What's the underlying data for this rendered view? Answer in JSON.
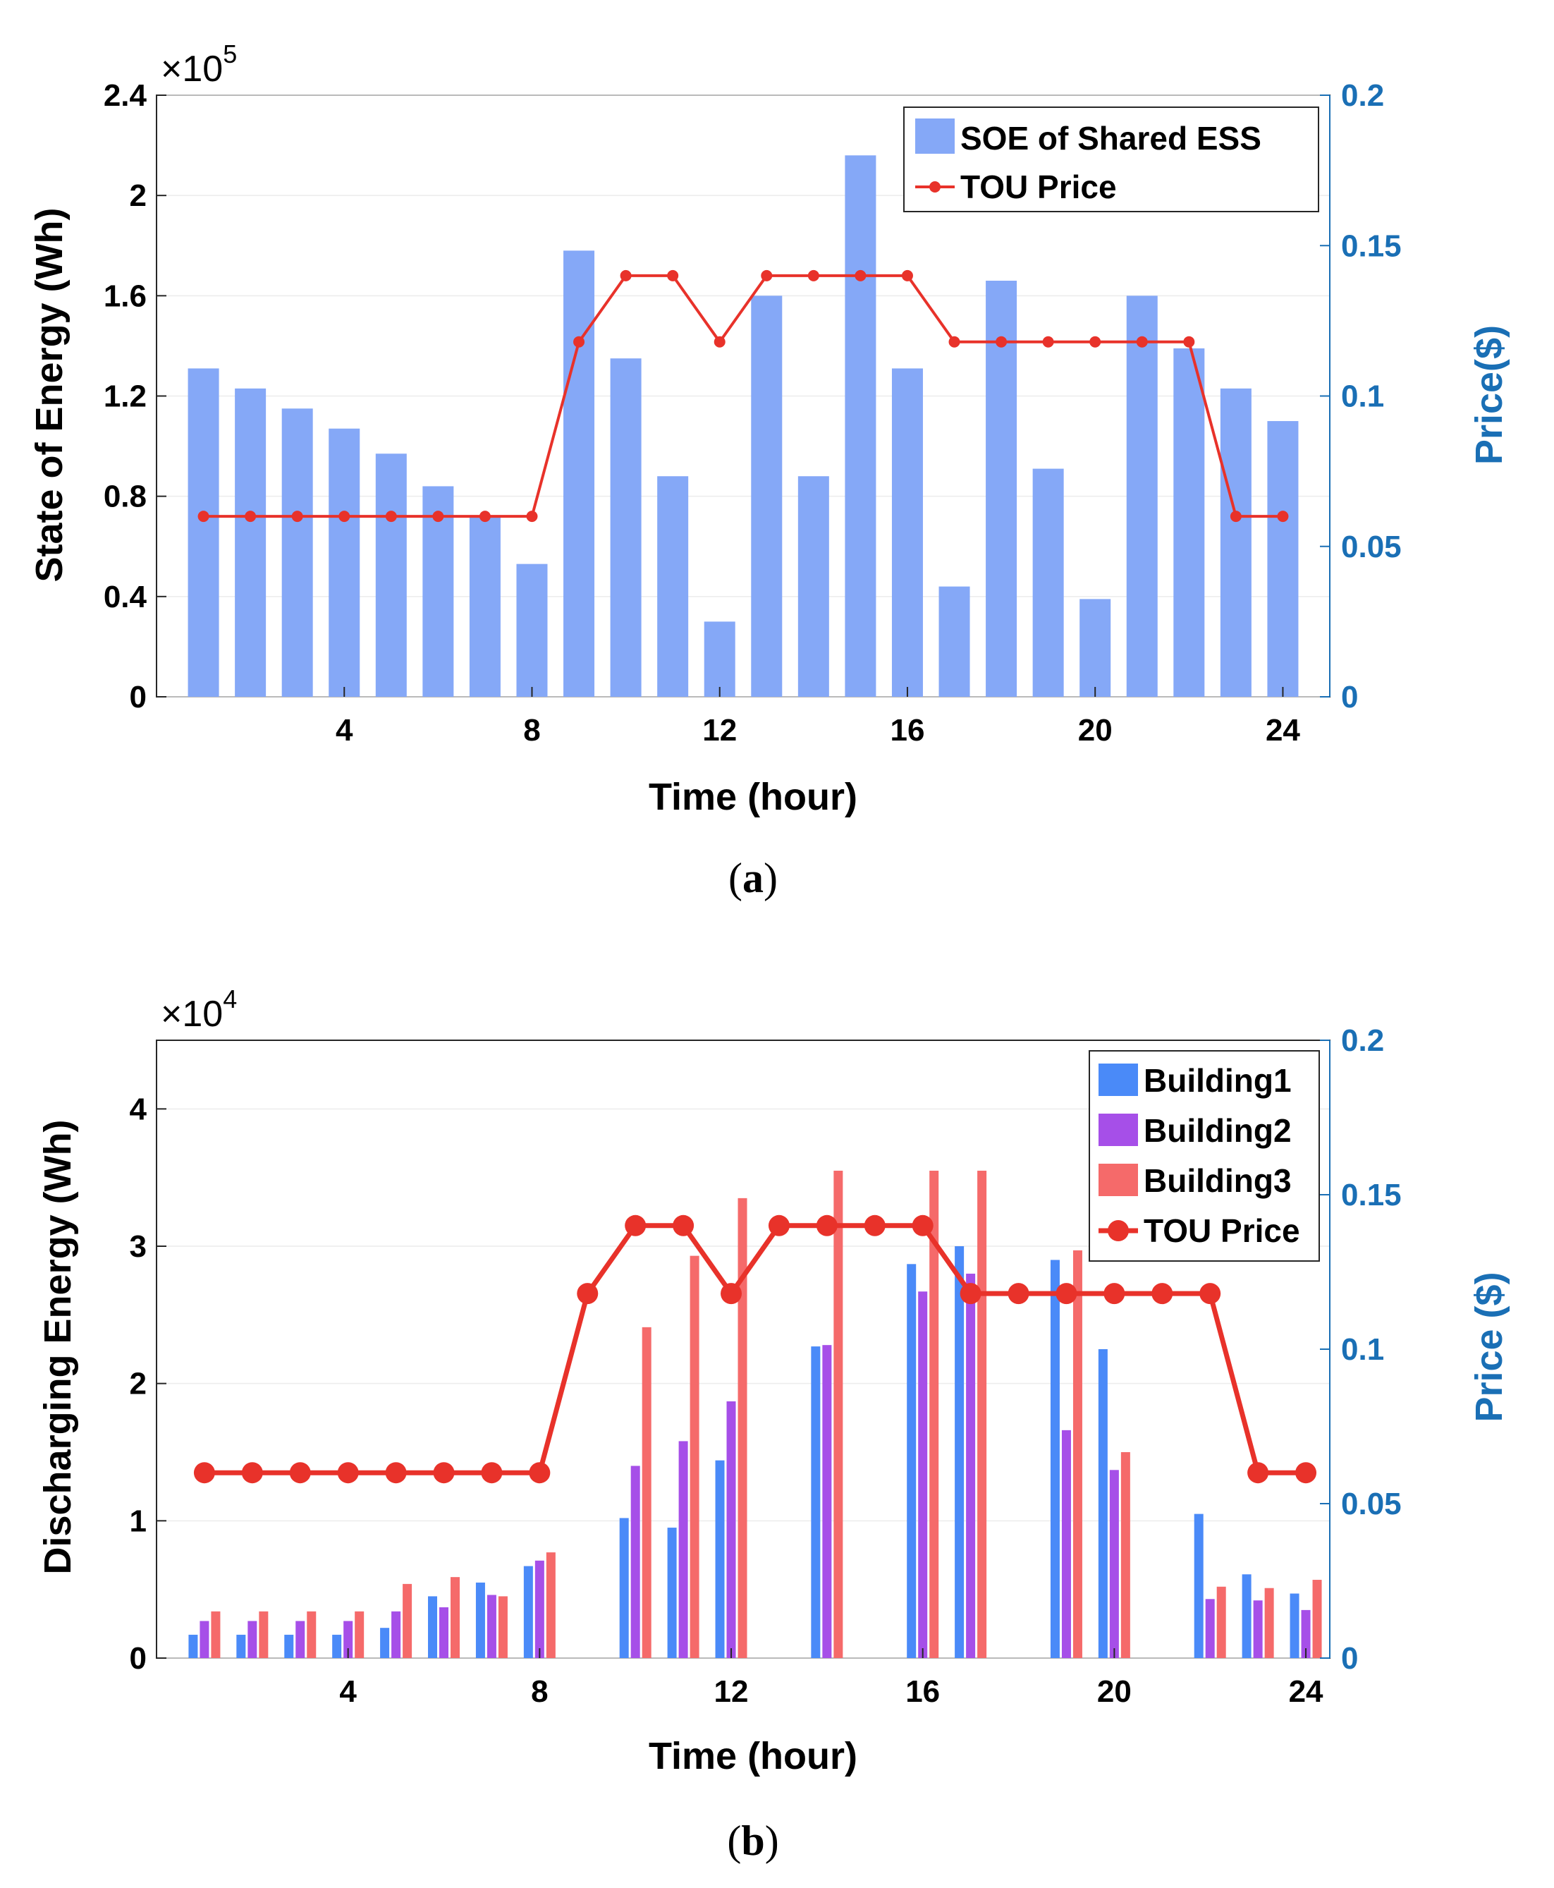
{
  "colors": {
    "soe_bar": "#85a8f7",
    "building1": "#4a8af8",
    "building2": "#a64fe8",
    "building3": "#f56a6a",
    "tou_line": "#e8322a",
    "right_axis": "#1a6fb5"
  },
  "chart_data": [
    {
      "type": "bar",
      "caption_open": "(",
      "caption_letter": "a",
      "caption_close": ")",
      "xlabel": "Time (hour)",
      "ylabel": "State of Energy (Wh)",
      "ylabel_right": "Price($)",
      "multiplier_base": "×10",
      "multiplier_exp": "5",
      "xlim": [
        0,
        25
      ],
      "ylim": [
        0,
        2.4
      ],
      "ylim_right": [
        0,
        0.2
      ],
      "x_ticks": [
        4,
        8,
        12,
        16,
        20,
        24
      ],
      "y_ticks": [
        "0",
        "0.4",
        "0.8",
        "1.2",
        "1.6",
        "2",
        "2.4"
      ],
      "y_tick_values": [
        0,
        0.4,
        0.8,
        1.2,
        1.6,
        2.0,
        2.4
      ],
      "y_right_ticks": [
        "0",
        "0.05",
        "0.1",
        "0.15",
        "0.2"
      ],
      "y_right_tick_values": [
        0,
        0.05,
        0.1,
        0.15,
        0.2
      ],
      "x": [
        1,
        2,
        3,
        4,
        5,
        6,
        7,
        8,
        9,
        10,
        11,
        12,
        13,
        14,
        15,
        16,
        17,
        18,
        19,
        20,
        21,
        22,
        23,
        24
      ],
      "series": [
        {
          "name": "SOE of Shared ESS",
          "kind": "bar",
          "values": [
            1.31,
            1.23,
            1.15,
            1.07,
            0.97,
            0.84,
            0.72,
            0.53,
            1.78,
            1.35,
            0.88,
            0.3,
            1.6,
            0.88,
            2.16,
            1.31,
            0.44,
            1.66,
            0.91,
            0.39,
            1.6,
            1.39,
            1.23,
            1.1
          ]
        },
        {
          "name": "TOU Price",
          "kind": "line",
          "axis": "right",
          "values": [
            0.06,
            0.06,
            0.06,
            0.06,
            0.06,
            0.06,
            0.06,
            0.06,
            0.118,
            0.14,
            0.14,
            0.118,
            0.14,
            0.14,
            0.14,
            0.14,
            0.118,
            0.118,
            0.118,
            0.118,
            0.118,
            0.118,
            0.06,
            0.06
          ]
        }
      ]
    },
    {
      "type": "bar",
      "caption_open": "(",
      "caption_letter": "b",
      "caption_close": ")",
      "xlabel": "Time (hour)",
      "ylabel": "Discharging Energy (Wh)",
      "ylabel_right": "Price ($)",
      "multiplier_base": "×10",
      "multiplier_exp": "4",
      "xlim": [
        0,
        24.5
      ],
      "ylim": [
        0,
        4.5
      ],
      "ylim_right": [
        0,
        0.2
      ],
      "x_ticks": [
        4,
        8,
        12,
        16,
        20,
        24
      ],
      "y_ticks": [
        "0",
        "1",
        "2",
        "3",
        "4"
      ],
      "y_tick_values": [
        0,
        1,
        2,
        3,
        4
      ],
      "y_right_ticks": [
        "0",
        "0.05",
        "0.1",
        "0.15",
        "0.2"
      ],
      "y_right_tick_values": [
        0,
        0.05,
        0.1,
        0.15,
        0.2
      ],
      "x": [
        1,
        2,
        3,
        4,
        5,
        6,
        7,
        8,
        9,
        10,
        11,
        12,
        13,
        14,
        15,
        16,
        17,
        18,
        19,
        20,
        21,
        22,
        23,
        24
      ],
      "series": [
        {
          "name": "Building1",
          "kind": "bar",
          "values": [
            0.17,
            0.17,
            0.17,
            0.17,
            0.22,
            0.45,
            0.55,
            0.67,
            0,
            1.02,
            0.95,
            1.44,
            0,
            2.27,
            0,
            2.87,
            3.0,
            0,
            2.9,
            2.25,
            0,
            1.05,
            0.61,
            0.47
          ]
        },
        {
          "name": "Building2",
          "kind": "bar",
          "values": [
            0.27,
            0.27,
            0.27,
            0.27,
            0.34,
            0.37,
            0.46,
            0.71,
            0,
            1.4,
            1.58,
            1.87,
            0,
            2.28,
            0,
            2.67,
            2.8,
            0,
            1.66,
            1.37,
            0,
            0.43,
            0.42,
            0.35
          ]
        },
        {
          "name": "Building3",
          "kind": "bar",
          "values": [
            0.34,
            0.34,
            0.34,
            0.34,
            0.54,
            0.59,
            0.45,
            0.77,
            0,
            2.41,
            2.93,
            3.35,
            0,
            3.55,
            0,
            3.55,
            3.55,
            0,
            2.97,
            1.5,
            0,
            0.52,
            0.51,
            0.57
          ]
        },
        {
          "name": "TOU Price",
          "kind": "line",
          "axis": "right",
          "values": [
            0.06,
            0.06,
            0.06,
            0.06,
            0.06,
            0.06,
            0.06,
            0.06,
            0.118,
            0.14,
            0.14,
            0.118,
            0.14,
            0.14,
            0.14,
            0.14,
            0.118,
            0.118,
            0.118,
            0.118,
            0.118,
            0.118,
            0.06,
            0.06
          ]
        }
      ]
    }
  ]
}
